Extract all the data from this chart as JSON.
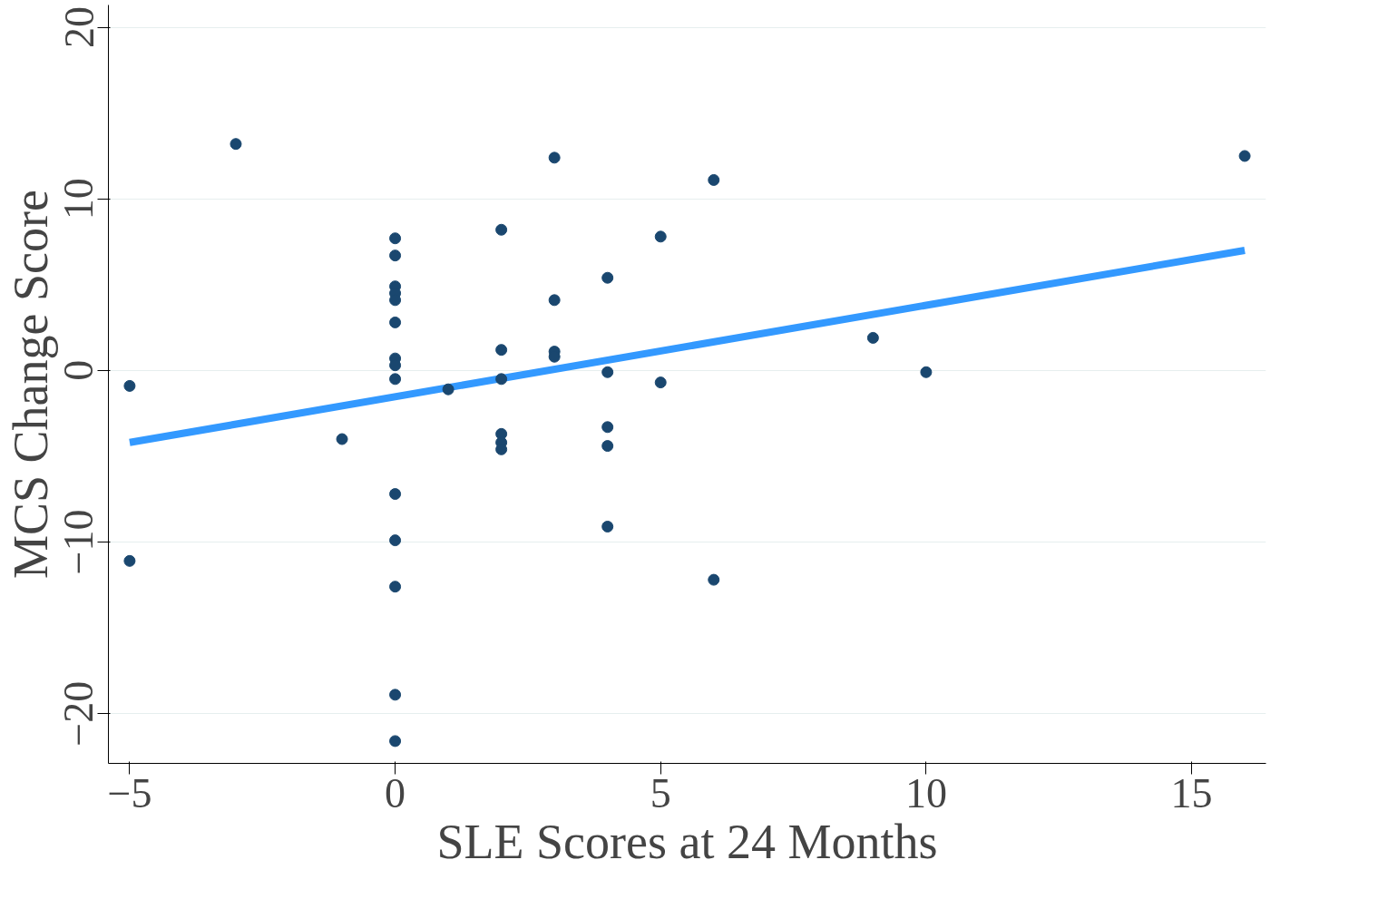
{
  "chart_data": {
    "type": "scatter",
    "xlabel": "SLE Scores at 24 Months",
    "ylabel": "MCS Change Score",
    "xlim": [
      -5.4,
      16.4
    ],
    "ylim": [
      -22.9,
      21.3
    ],
    "xticks": [
      -5,
      0,
      5,
      10,
      15
    ],
    "yticks": [
      -20,
      -10,
      0,
      10,
      20
    ],
    "grid": "y",
    "marker": "circle",
    "series": [
      {
        "color": "#1a476f",
        "x": [
          -5,
          -5,
          -3,
          -1,
          0,
          0,
          0,
          0,
          0,
          0,
          0,
          0,
          0,
          0,
          0,
          0,
          0,
          0,
          1,
          2,
          2,
          2,
          2,
          2,
          2,
          3,
          3,
          3,
          3,
          4,
          4,
          4,
          4,
          4,
          5,
          5,
          6,
          6,
          9,
          10,
          16
        ],
        "values": [
          -0.9,
          -11.1,
          13.2,
          -4.0,
          7.7,
          6.7,
          4.9,
          4.5,
          4.1,
          2.8,
          0.7,
          0.3,
          -0.5,
          -7.2,
          -9.9,
          -12.6,
          -18.9,
          -21.6,
          -1.1,
          8.2,
          1.2,
          -0.5,
          -3.7,
          -4.2,
          -4.6,
          12.4,
          4.1,
          1.1,
          0.8,
          5.4,
          -0.1,
          -3.3,
          -4.4,
          -9.1,
          7.8,
          -0.7,
          11.1,
          -12.2,
          1.9,
          -0.1,
          12.5
        ]
      },
      {
        "type": "line",
        "color": "#3399ff",
        "marker": "none",
        "x": [
          -5,
          16
        ],
        "values": [
          -4.2,
          7.0
        ]
      }
    ]
  }
}
